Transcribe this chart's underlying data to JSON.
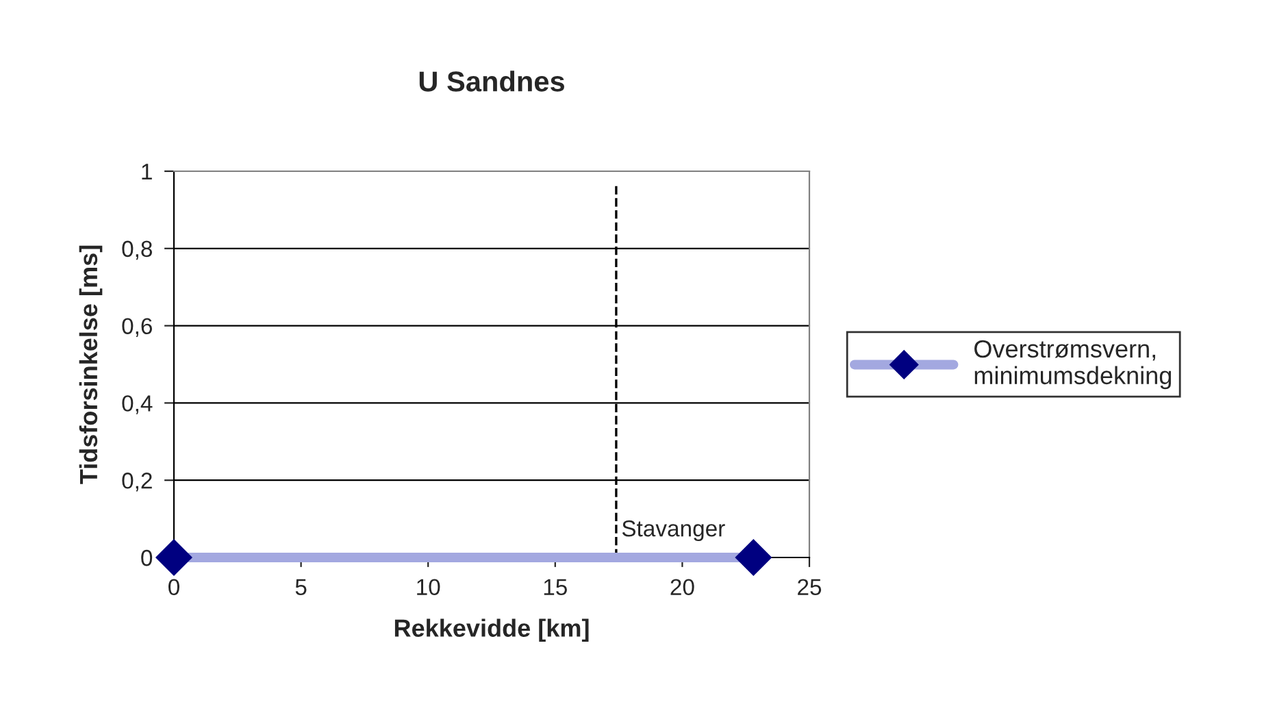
{
  "chart_data": {
    "type": "line",
    "title": "U Sandnes",
    "xlabel": "Rekkevidde [km]",
    "ylabel": "Tidsforsinkelse [ms]",
    "x": [
      0,
      22.8
    ],
    "series": [
      {
        "name": "Overstrømsvern,\nminimumsdekning",
        "color": "#a3a8e0",
        "colors": [
          "#000080",
          "#000080"
        ],
        "values": [
          0,
          0
        ]
      }
    ],
    "marker": "diamond",
    "line_style": "solid",
    "xlim": [
      0,
      25
    ],
    "xticks": [
      0,
      5,
      10,
      15,
      20,
      25
    ],
    "ylim": [
      0,
      1
    ],
    "yticks": [
      0,
      {
        "value": 0.2,
        "label": "0,2"
      },
      {
        "value": 0.4,
        "label": "0,4"
      },
      {
        "value": 0.6,
        "label": "0,6"
      },
      {
        "value": 0.8,
        "label": "0,8"
      },
      1
    ],
    "grid": "y",
    "legend": "right",
    "ref_lines": [
      {
        "axis": "x",
        "value": 17.4,
        "label": "Stavanger",
        "color": "#000000",
        "line_style": "dashed"
      }
    ]
  }
}
